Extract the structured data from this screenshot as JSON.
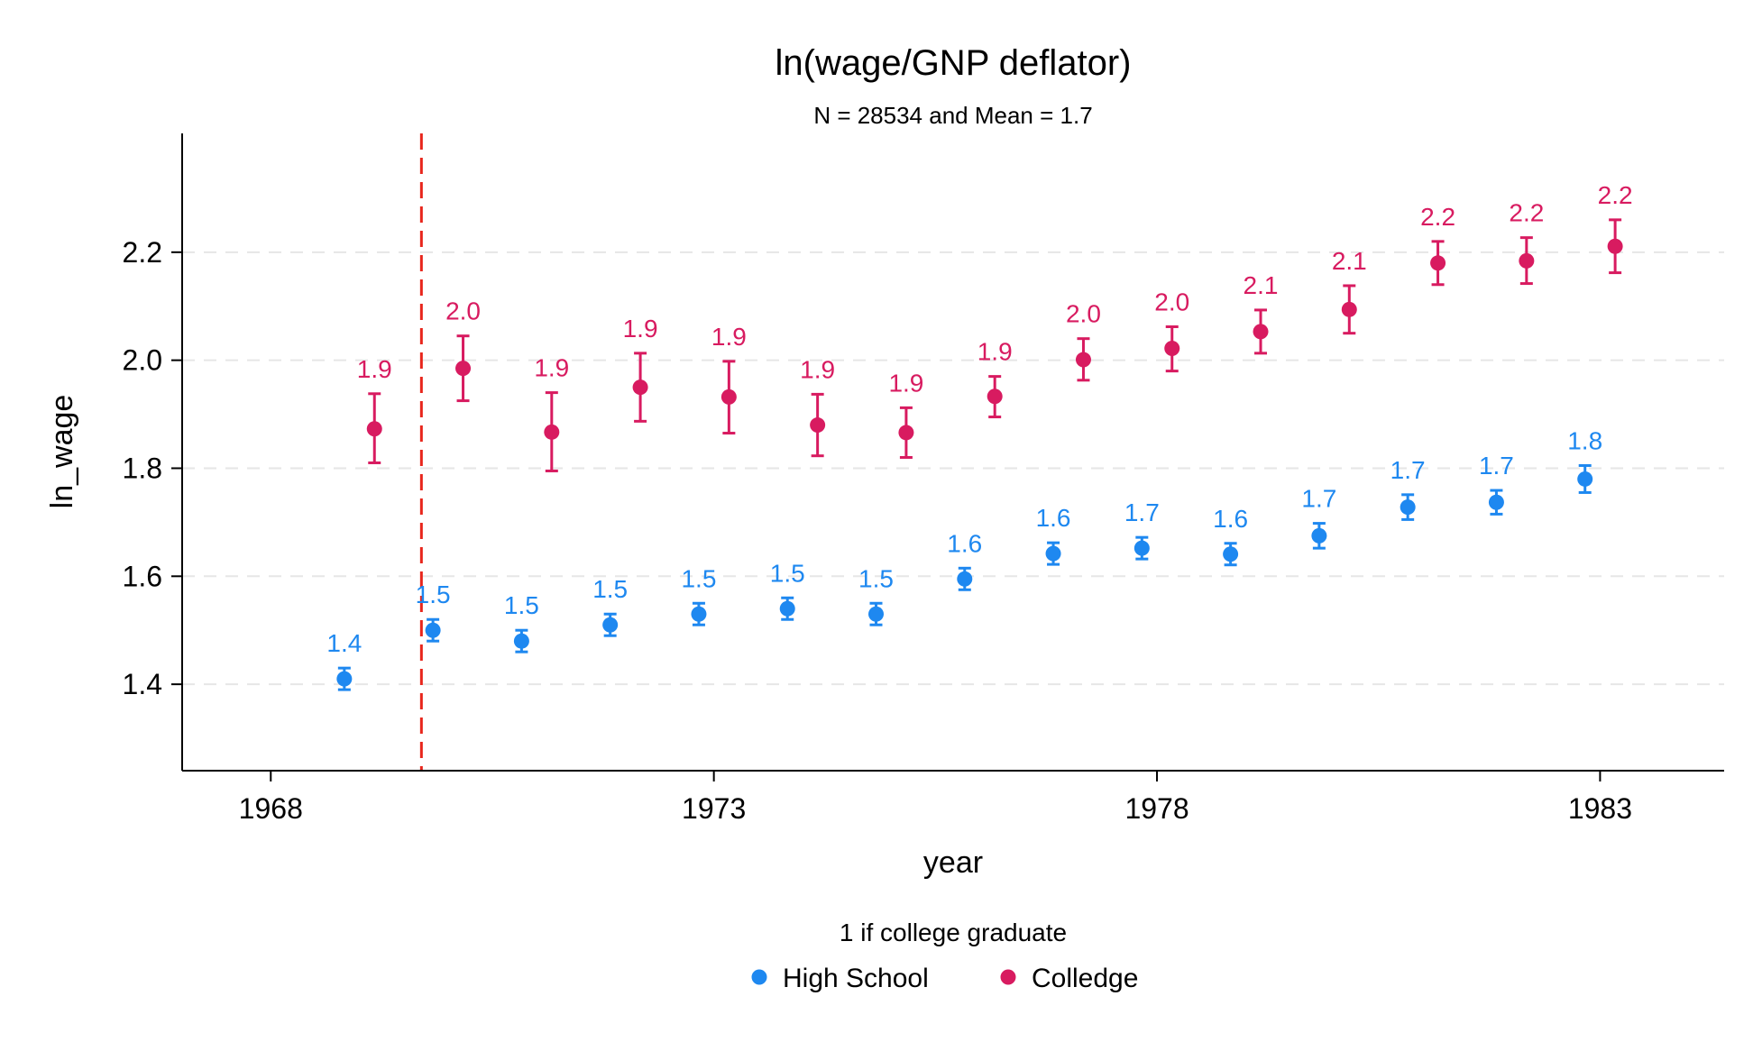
{
  "chart_data": {
    "type": "scatter",
    "title": "ln(wage/GNP deflator)",
    "subtitle": "N = 28534 and Mean = 1.7",
    "xlabel": "year",
    "ylabel": "ln_wage",
    "xlim": [
      1967.0,
      1984.4
    ],
    "ylim": [
      1.24,
      2.42
    ],
    "xticks": [
      1968,
      1973,
      1978,
      1983
    ],
    "yticks": [
      1.4,
      1.6,
      1.8,
      2.0,
      2.2
    ],
    "ytick_labels": [
      "1.4",
      "1.6",
      "1.8",
      "2.0",
      "2.2"
    ],
    "grid": "horizontal dashed",
    "reference_line": {
      "x": 1969.7,
      "style": "dashed",
      "color": "#e8261c"
    },
    "legend": {
      "title": "1 if college graduate",
      "placement": "bottom-center"
    },
    "series": [
      {
        "name": "High School",
        "color": "#1e88f0",
        "x": [
          1968.83,
          1969.83,
          1970.83,
          1971.83,
          1972.83,
          1973.83,
          1974.83,
          1975.83,
          1976.83,
          1977.83,
          1978.83,
          1979.83,
          1980.83,
          1981.83,
          1982.83
        ],
        "y": [
          1.41,
          1.5,
          1.48,
          1.51,
          1.53,
          1.54,
          1.53,
          1.595,
          1.642,
          1.652,
          1.641,
          1.675,
          1.728,
          1.737,
          1.78
        ],
        "ci_low": [
          1.39,
          1.48,
          1.46,
          1.49,
          1.51,
          1.52,
          1.51,
          1.575,
          1.622,
          1.632,
          1.621,
          1.652,
          1.705,
          1.715,
          1.755
        ],
        "ci_high": [
          1.43,
          1.52,
          1.5,
          1.53,
          1.55,
          1.56,
          1.55,
          1.615,
          1.662,
          1.672,
          1.661,
          1.698,
          1.751,
          1.759,
          1.805
        ],
        "labels": [
          "1.4",
          "1.5",
          "1.5",
          "1.5",
          "1.5",
          "1.5",
          "1.5",
          "1.6",
          "1.6",
          "1.7",
          "1.6",
          "1.7",
          "1.7",
          "1.7",
          "1.8"
        ]
      },
      {
        "name": "Colledge",
        "color": "#d81b60",
        "x": [
          1969.17,
          1970.17,
          1971.17,
          1972.17,
          1973.17,
          1974.17,
          1975.17,
          1976.17,
          1977.17,
          1978.17,
          1979.17,
          1980.17,
          1981.17,
          1982.17,
          1983.17
        ],
        "y": [
          1.873,
          1.985,
          1.867,
          1.95,
          1.932,
          1.88,
          1.866,
          1.933,
          2.001,
          2.022,
          2.053,
          2.094,
          2.18,
          2.184,
          2.211
        ],
        "ci_low": [
          1.81,
          1.925,
          1.795,
          1.887,
          1.865,
          1.823,
          1.82,
          1.895,
          1.963,
          1.98,
          2.013,
          2.05,
          2.14,
          2.142,
          2.162
        ],
        "ci_high": [
          1.938,
          2.045,
          1.94,
          2.013,
          1.998,
          1.937,
          1.912,
          1.97,
          2.04,
          2.062,
          2.093,
          2.138,
          2.22,
          2.227,
          2.26
        ],
        "labels": [
          "1.9",
          "2.0",
          "1.9",
          "1.9",
          "1.9",
          "1.9",
          "1.9",
          "1.9",
          "2.0",
          "2.0",
          "2.1",
          "2.1",
          "2.2",
          "2.2",
          "2.2"
        ]
      }
    ]
  }
}
